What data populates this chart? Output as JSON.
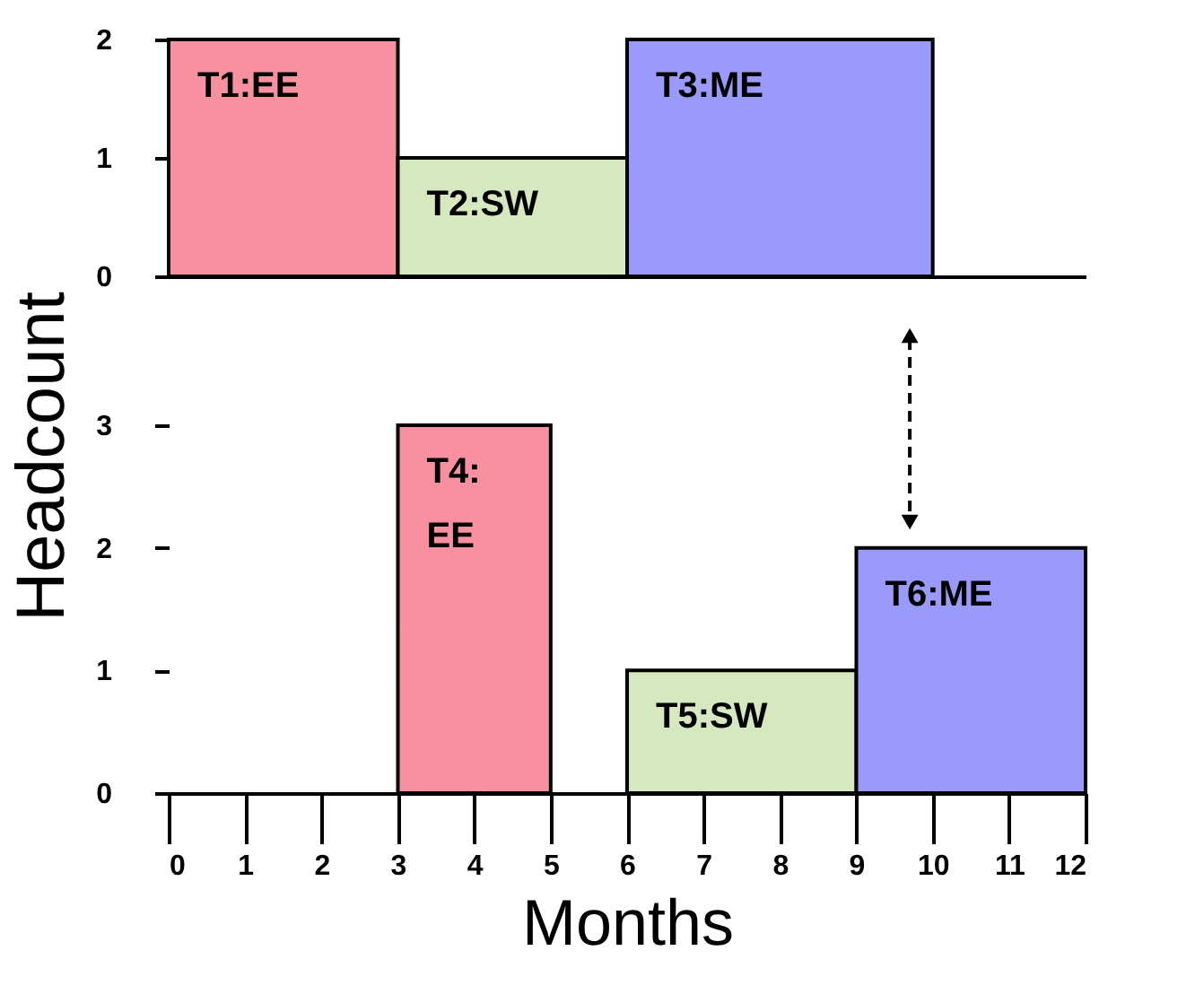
{
  "chart_data": [
    {
      "type": "histogram",
      "bins": [
        0,
        3,
        6,
        10
      ],
      "values": [
        2,
        1,
        2
      ],
      "colors": [
        "#f7909f",
        "#d5e8c0",
        "#9a9afa"
      ],
      "xlim": [
        0,
        12
      ],
      "ylim": [
        0,
        2
      ],
      "yticks": [
        0,
        1,
        2
      ],
      "tick_labels": "y",
      "annotations": [
        "T1:EE",
        "T2:SW",
        "T3:ME"
      ]
    },
    {
      "type": "histogram",
      "bins": [
        3,
        5,
        6,
        9,
        12
      ],
      "values": [
        3,
        null,
        1,
        2
      ],
      "colors": [
        "#f7909f",
        null,
        "#d5e8c0",
        "#9a9afa"
      ],
      "xlim": [
        0,
        12
      ],
      "xticks": [
        0,
        1,
        2,
        3,
        4,
        5,
        6,
        7,
        8,
        9,
        10,
        11,
        12
      ],
      "ylim": [
        0,
        3
      ],
      "yticks": [
        0,
        1,
        2,
        3
      ],
      "xlabel": "Months",
      "ylabel": "Headcount",
      "annotations": [
        "T4:\nEE",
        "T5:SW",
        "T6:ME"
      ]
    }
  ]
}
